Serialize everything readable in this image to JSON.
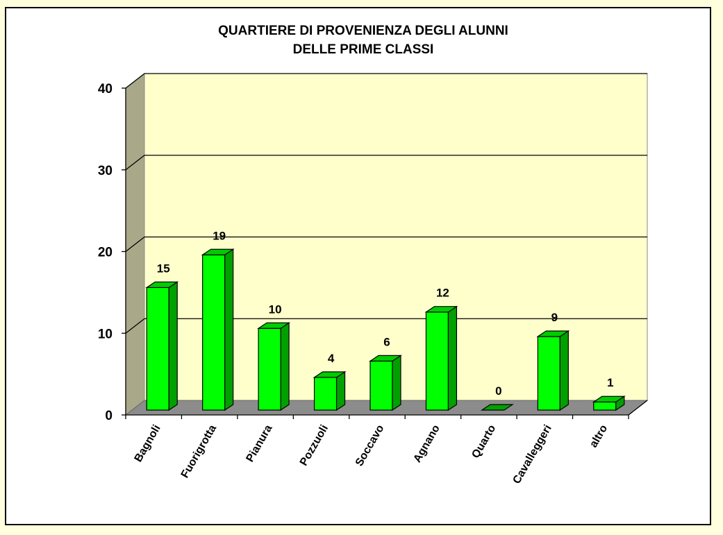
{
  "colors": {
    "page_bg": "#FFFFDD",
    "chart_bg": "#FFFFFF",
    "back_wall": "#FFFFCC",
    "side_wall": "#A9A98A",
    "floor": "#8C8C8C",
    "bar_front": "#00FF00",
    "bar_side": "#00A000",
    "bar_top": "#00CC00",
    "gridline": "#000000"
  },
  "chart_data": {
    "type": "bar",
    "title": "QUARTIERE DI PROVENIENZA DEGLI ALUNNI",
    "subtitle": "DELLE PRIME CLASSI",
    "title_lines": [
      "QUARTIERE DI PROVENIENZA DEGLI ALUNNI",
      "DELLE PRIME CLASSI"
    ],
    "xlabel": "",
    "ylabel": "",
    "categories": [
      "Bagnoli",
      "Fuorigrotta",
      "Pianura",
      "Pozzuoli",
      "Soccavo",
      "Agnano",
      "Quarto",
      "Cavalleggeri",
      "altro"
    ],
    "values": [
      15,
      19,
      10,
      4,
      6,
      12,
      0,
      9,
      1
    ],
    "ylim": [
      0,
      40
    ],
    "yticks": [
      0,
      10,
      20,
      30,
      40
    ],
    "grid": true,
    "legend": "none",
    "style": "3d-column",
    "data_labels": true
  }
}
